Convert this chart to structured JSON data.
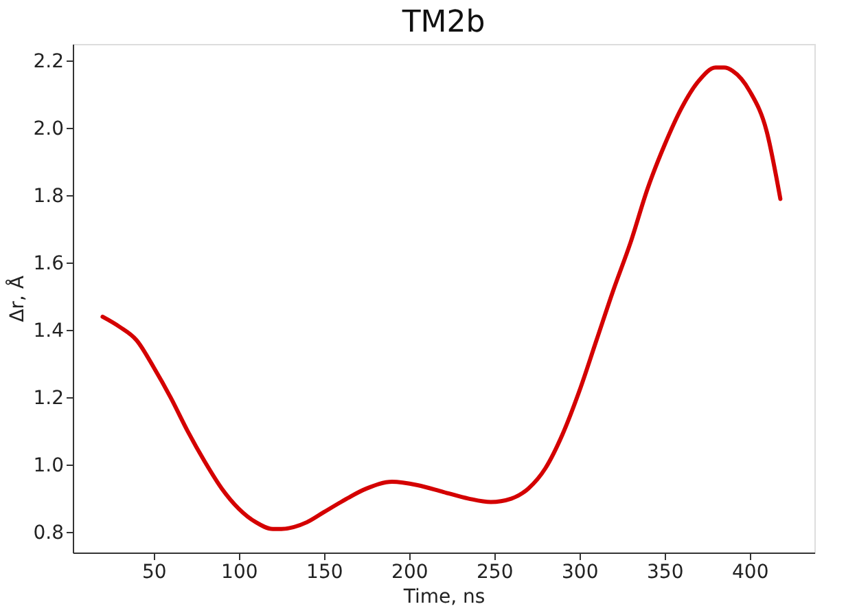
{
  "chart_data": {
    "type": "line",
    "title": "TM2b",
    "xlabel": "Time, ns",
    "ylabel": "Δr, Å",
    "x": [
      20,
      30,
      40,
      50,
      60,
      70,
      80,
      90,
      100,
      110,
      120,
      125,
      140,
      150,
      160,
      175,
      190,
      205,
      220,
      235,
      248,
      260,
      270,
      280,
      290,
      300,
      310,
      320,
      330,
      340,
      350,
      360,
      370,
      380,
      385,
      390,
      400,
      410,
      418
    ],
    "series": [
      {
        "color": "#d40000",
        "values": [
          1.44,
          1.41,
          1.37,
          1.29,
          1.2,
          1.1,
          1.01,
          0.93,
          0.87,
          0.83,
          0.81,
          0.81,
          0.83,
          0.86,
          0.89,
          0.93,
          0.95,
          0.94,
          0.92,
          0.9,
          0.89,
          0.9,
          0.93,
          0.99,
          1.09,
          1.22,
          1.37,
          1.52,
          1.66,
          1.82,
          1.95,
          2.06,
          2.14,
          2.18,
          2.18,
          2.17,
          2.11,
          1.99,
          1.79
        ]
      }
    ],
    "xlim": [
      2.5,
      438
    ],
    "xticks": [
      50,
      100,
      150,
      200,
      250,
      300,
      350,
      400
    ],
    "ylim": [
      0.74,
      2.25
    ],
    "yticks": [
      {
        "value": 0.8,
        "label": "0.8"
      },
      {
        "value": 1.0,
        "label": "1.0"
      },
      {
        "value": 1.2,
        "label": "1.2"
      },
      {
        "value": 1.4,
        "label": "1.4"
      },
      {
        "value": 1.6,
        "label": "1.6"
      },
      {
        "value": 1.8,
        "label": "1.8"
      },
      {
        "value": 2.0,
        "label": "2.0"
      },
      {
        "value": 2.2,
        "label": "2.2"
      }
    ],
    "grid": false,
    "marker": "none",
    "line_style": "solid"
  }
}
